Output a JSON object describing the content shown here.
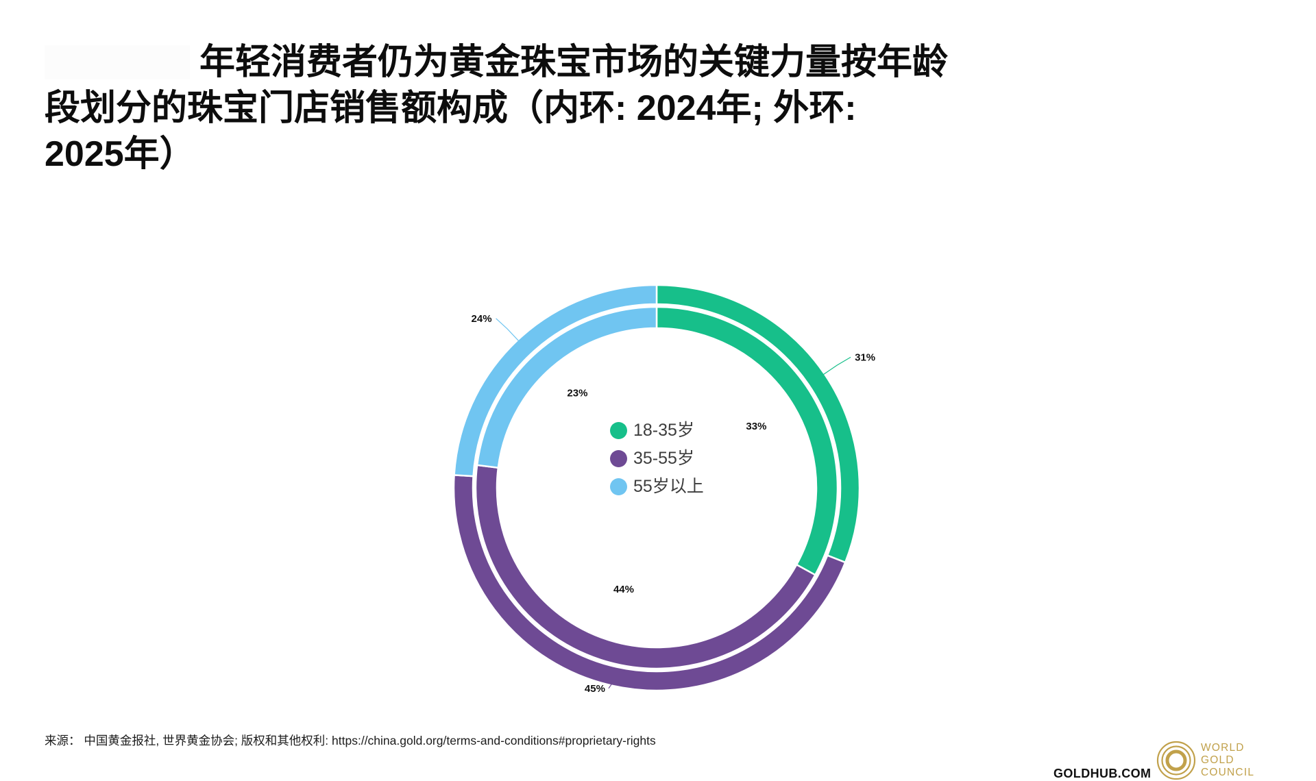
{
  "title": {
    "lines": [
      "年轻消费者仍为黄金珠宝市场的关键力量按年龄",
      "段划分的珠宝门店销售额构成（内环:  2024年;  外环:",
      "2025年）"
    ]
  },
  "chart_data": {
    "type": "pie",
    "subtype": "double-ring-donut",
    "title": "按年龄段划分的珠宝门店销售额构成（内环: 2024年; 外环: 2025年）",
    "categories": [
      "18-35岁",
      "35-55岁",
      "55岁以上"
    ],
    "colors": [
      "#17BF8A",
      "#6E4A94",
      "#70C5F1"
    ],
    "series": [
      {
        "name": "2025年",
        "ring": "outer",
        "values": [
          31,
          45,
          24
        ]
      },
      {
        "name": "2024年",
        "ring": "inner",
        "values": [
          33,
          44,
          23
        ]
      }
    ],
    "unit": "%",
    "start_angle": 0,
    "clockwise": true,
    "legend_position": "center",
    "layout": {
      "svg_size": [
        800,
        700
      ],
      "center": [
        398,
        352
      ],
      "rings": {
        "outer": {
          "r0": 268,
          "r1": 296
        },
        "inner": {
          "r0": 233,
          "r1": 264
        }
      },
      "slice_border_color": "#ffffff",
      "slice_border_width": 2.5,
      "inner_label_hints": [
        {
          "a_off": -1.2,
          "r": 0.578
        },
        {
          "a_off": 0,
          "r": 0.525
        },
        {
          "a_off": 1.6,
          "r": 0.61
        }
      ],
      "outer_label_hints": [
        {
          "a_off": 0.8,
          "r": 1.17,
          "anchor": "start",
          "attach_dx": -6
        },
        {
          "a_off": 4.5,
          "r": 1.035,
          "anchor": "middle",
          "attach_dx": 20
        },
        {
          "a_off": -1.0,
          "r": 1.165,
          "anchor": "end",
          "attach_dx": 6
        }
      ]
    }
  },
  "footer": {
    "source": "来源： 中国黄金报社, 世界黄金协会; 版权和其他权利: https://china.gold.org/terms-and-conditions#proprietary-rights",
    "goldhub": "GOLDHUB.COM",
    "wgc_lines": [
      "WORLD",
      "GOLD",
      "COUNCIL"
    ],
    "gold_color": "#C1A14B"
  }
}
